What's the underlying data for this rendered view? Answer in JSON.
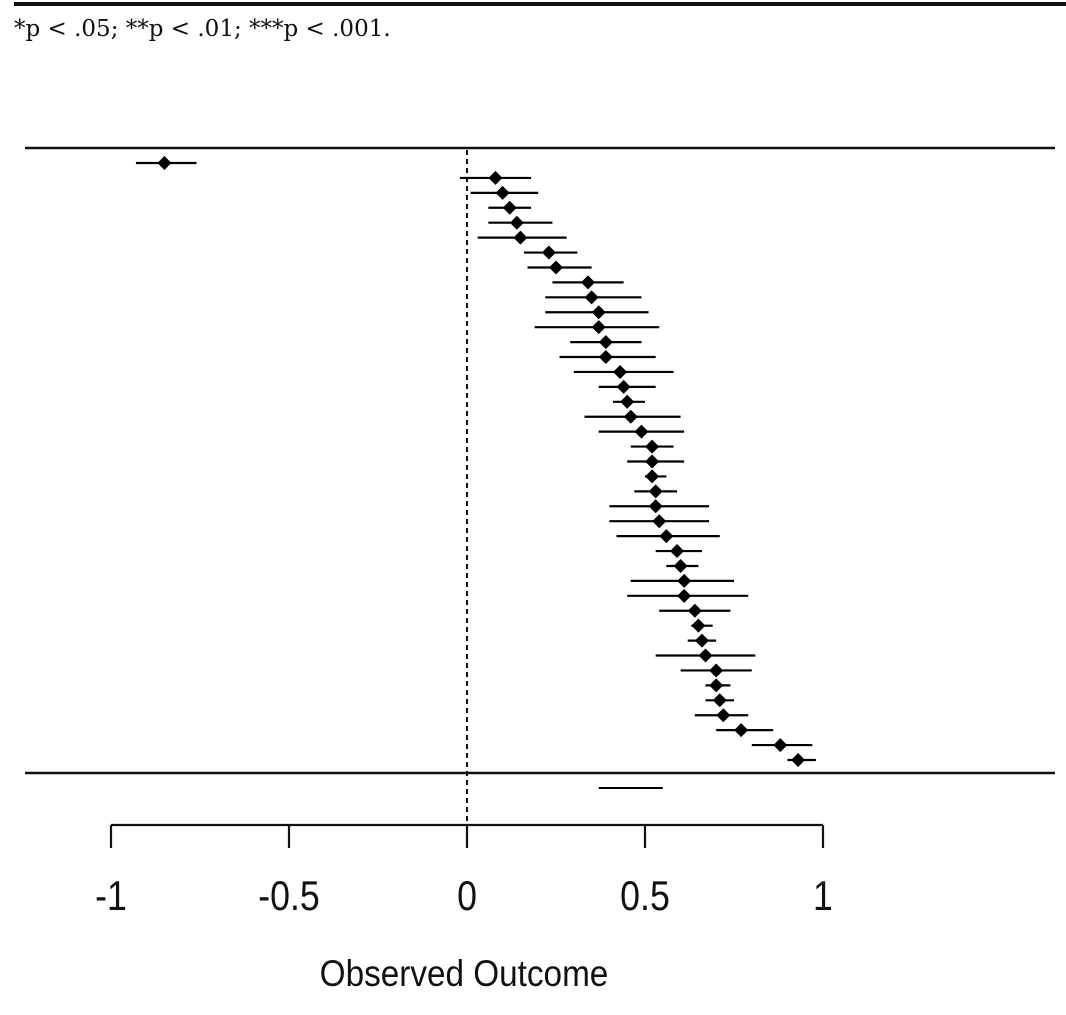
{
  "footnote": "*p < .05; **p < .01; ***p < .001.",
  "chart_data": {
    "type": "forest",
    "xlabel": "Observed Outcome",
    "xlim": [
      -1,
      1
    ],
    "xticks": [
      -1,
      -0.5,
      0,
      0.5,
      1
    ],
    "xtick_labels": [
      "-1",
      "-0.5",
      "0",
      "0.5",
      "1"
    ],
    "reference_line": 0,
    "grid": false,
    "color": "#000000",
    "studies": [
      {
        "est": -0.85,
        "lo": -0.93,
        "hi": -0.76
      },
      {
        "est": 0.08,
        "lo": -0.02,
        "hi": 0.18
      },
      {
        "est": 0.1,
        "lo": 0.01,
        "hi": 0.2
      },
      {
        "est": 0.12,
        "lo": 0.06,
        "hi": 0.18
      },
      {
        "est": 0.14,
        "lo": 0.06,
        "hi": 0.24
      },
      {
        "est": 0.15,
        "lo": 0.03,
        "hi": 0.28
      },
      {
        "est": 0.23,
        "lo": 0.16,
        "hi": 0.31
      },
      {
        "est": 0.25,
        "lo": 0.17,
        "hi": 0.35
      },
      {
        "est": 0.34,
        "lo": 0.24,
        "hi": 0.44
      },
      {
        "est": 0.35,
        "lo": 0.22,
        "hi": 0.49
      },
      {
        "est": 0.37,
        "lo": 0.22,
        "hi": 0.51
      },
      {
        "est": 0.37,
        "lo": 0.19,
        "hi": 0.54
      },
      {
        "est": 0.39,
        "lo": 0.29,
        "hi": 0.49
      },
      {
        "est": 0.39,
        "lo": 0.26,
        "hi": 0.53
      },
      {
        "est": 0.43,
        "lo": 0.3,
        "hi": 0.58
      },
      {
        "est": 0.44,
        "lo": 0.37,
        "hi": 0.53
      },
      {
        "est": 0.45,
        "lo": 0.41,
        "hi": 0.5
      },
      {
        "est": 0.46,
        "lo": 0.33,
        "hi": 0.6
      },
      {
        "est": 0.49,
        "lo": 0.37,
        "hi": 0.61
      },
      {
        "est": 0.52,
        "lo": 0.46,
        "hi": 0.58
      },
      {
        "est": 0.52,
        "lo": 0.45,
        "hi": 0.61
      },
      {
        "est": 0.52,
        "lo": 0.5,
        "hi": 0.56
      },
      {
        "est": 0.53,
        "lo": 0.47,
        "hi": 0.59
      },
      {
        "est": 0.53,
        "lo": 0.4,
        "hi": 0.68
      },
      {
        "est": 0.54,
        "lo": 0.4,
        "hi": 0.68
      },
      {
        "est": 0.56,
        "lo": 0.42,
        "hi": 0.71
      },
      {
        "est": 0.59,
        "lo": 0.53,
        "hi": 0.66
      },
      {
        "est": 0.6,
        "lo": 0.56,
        "hi": 0.65
      },
      {
        "est": 0.61,
        "lo": 0.46,
        "hi": 0.75
      },
      {
        "est": 0.61,
        "lo": 0.45,
        "hi": 0.79
      },
      {
        "est": 0.64,
        "lo": 0.54,
        "hi": 0.74
      },
      {
        "est": 0.65,
        "lo": 0.63,
        "hi": 0.69
      },
      {
        "est": 0.66,
        "lo": 0.62,
        "hi": 0.7
      },
      {
        "est": 0.67,
        "lo": 0.53,
        "hi": 0.81
      },
      {
        "est": 0.7,
        "lo": 0.6,
        "hi": 0.8
      },
      {
        "est": 0.7,
        "lo": 0.67,
        "hi": 0.74
      },
      {
        "est": 0.71,
        "lo": 0.67,
        "hi": 0.75
      },
      {
        "est": 0.72,
        "lo": 0.64,
        "hi": 0.79
      },
      {
        "est": 0.77,
        "lo": 0.7,
        "hi": 0.86
      },
      {
        "est": 0.88,
        "lo": 0.8,
        "hi": 0.97
      },
      {
        "est": 0.93,
        "lo": 0.9,
        "hi": 0.98
      }
    ],
    "summary": {
      "lo": 0.37,
      "hi": 0.55
    }
  }
}
